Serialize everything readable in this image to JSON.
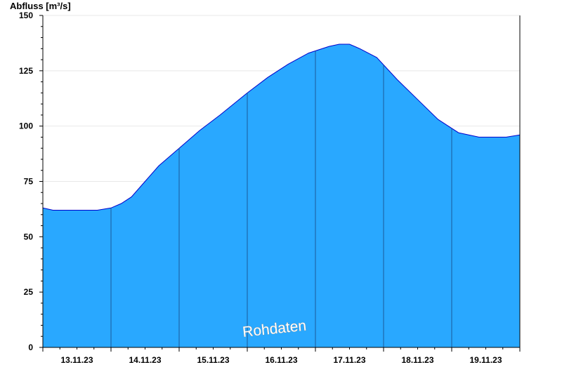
{
  "chart_data": {
    "type": "area",
    "ylabel": "Abfluss [m³/s]",
    "ylim": [
      0,
      150
    ],
    "yticks": [
      0,
      25,
      50,
      75,
      100,
      125,
      150
    ],
    "xlim": [
      0,
      7
    ],
    "x_category_labels": [
      "13.11.23",
      "14.11.23",
      "15.11.23",
      "16.11.23",
      "17.11.23",
      "18.11.23",
      "19.11.23"
    ],
    "grid": true,
    "fill_color": "#29a8ff",
    "line_color": "#0000cc",
    "watermark": "Rohdaten",
    "series": [
      {
        "x": [
          0.0,
          0.15,
          0.3,
          0.5,
          0.8,
          1.0,
          1.15,
          1.3,
          1.5,
          1.7,
          2.0,
          2.3,
          2.6,
          3.0,
          3.3,
          3.6,
          3.9,
          4.2,
          4.35,
          4.5,
          4.65,
          4.9,
          5.2,
          5.5,
          5.8,
          6.1,
          6.4,
          6.6,
          6.8,
          7.0
        ],
        "y": [
          63,
          62,
          62,
          62,
          62,
          63,
          65,
          68,
          75,
          82,
          90,
          98,
          105,
          115,
          122,
          128,
          133,
          136,
          137,
          137,
          135,
          131,
          121,
          112,
          103,
          97,
          95,
          95,
          95,
          96
        ]
      }
    ]
  }
}
